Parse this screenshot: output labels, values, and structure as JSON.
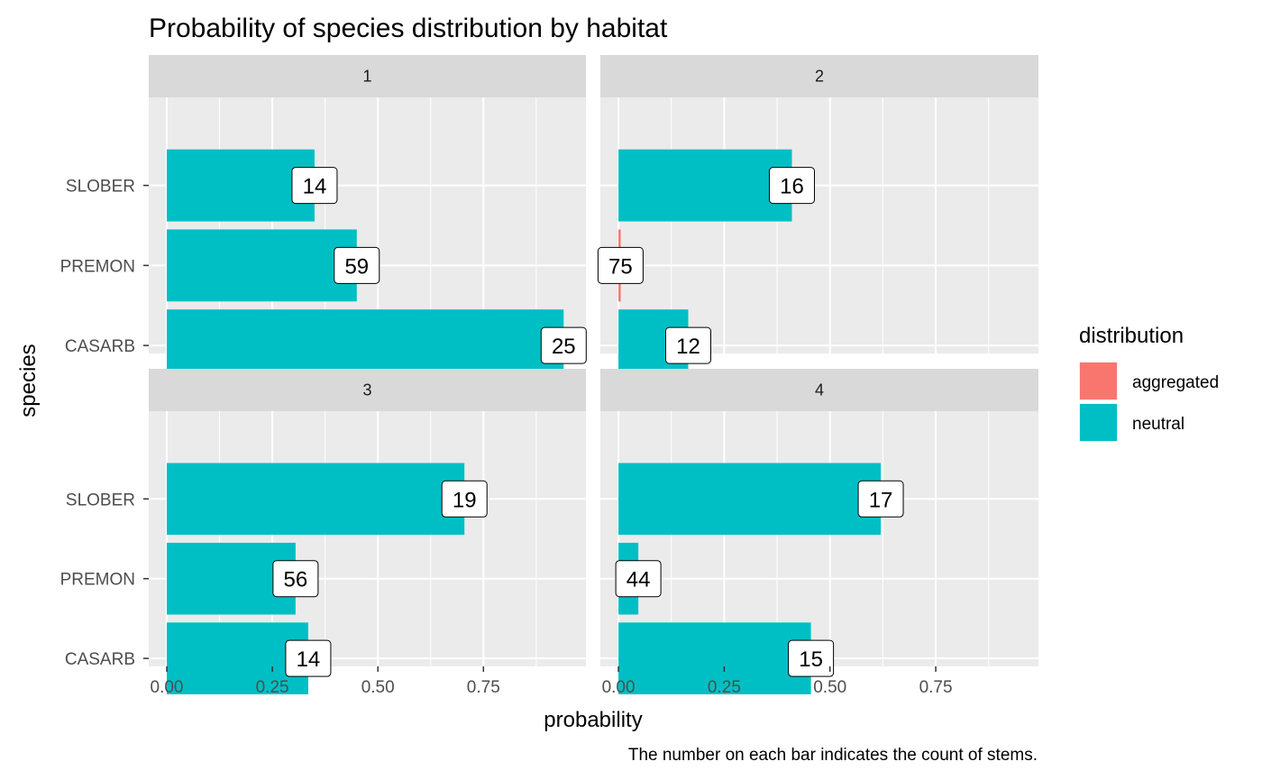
{
  "chart_data": {
    "type": "bar",
    "orientation": "horizontal",
    "facet_type": "wrap",
    "title": "Probability of species distribution by habitat",
    "xlabel": "probability",
    "ylabel": "species",
    "caption": "The number on each bar indicates the count of stems.",
    "xlim": [
      0,
      0.95
    ],
    "x_ticks": [
      {
        "value": 0.0,
        "label": "0.00"
      },
      {
        "value": 0.25,
        "label": "0.25"
      },
      {
        "value": 0.5,
        "label": "0.50"
      },
      {
        "value": 0.75,
        "label": "0.75"
      }
    ],
    "categories": [
      "SLOBER",
      "PREMON",
      "CASARB"
    ],
    "legend": {
      "title": "distribution",
      "position": "right",
      "items": [
        {
          "label": "aggregated",
          "color": "#F8766D"
        },
        {
          "label": "neutral",
          "color": "#00BFC4"
        }
      ]
    },
    "grid": true,
    "panel_background": "#EBEBEB",
    "strip_background": "#D9D9D9",
    "panels": [
      {
        "label": "1",
        "bars": [
          {
            "species": "SLOBER",
            "probability": 0.35,
            "count": "14",
            "distribution": "neutral"
          },
          {
            "species": "PREMON",
            "probability": 0.45,
            "count": "59",
            "distribution": "neutral"
          },
          {
            "species": "CASARB",
            "probability": 0.94,
            "count": "25",
            "distribution": "neutral"
          }
        ]
      },
      {
        "label": "2",
        "bars": [
          {
            "species": "SLOBER",
            "probability": 0.41,
            "count": "16",
            "distribution": "neutral"
          },
          {
            "species": "PREMON",
            "probability": 0.005,
            "count": "75",
            "distribution": "aggregated"
          },
          {
            "species": "CASARB",
            "probability": 0.165,
            "count": "12",
            "distribution": "neutral"
          }
        ]
      },
      {
        "label": "3",
        "bars": [
          {
            "species": "SLOBER",
            "probability": 0.705,
            "count": "19",
            "distribution": "neutral"
          },
          {
            "species": "PREMON",
            "probability": 0.305,
            "count": "56",
            "distribution": "neutral"
          },
          {
            "species": "CASARB",
            "probability": 0.335,
            "count": "14",
            "distribution": "neutral"
          }
        ]
      },
      {
        "label": "4",
        "bars": [
          {
            "species": "SLOBER",
            "probability": 0.62,
            "count": "17",
            "distribution": "neutral"
          },
          {
            "species": "PREMON",
            "probability": 0.047,
            "count": "44",
            "distribution": "neutral"
          },
          {
            "species": "CASARB",
            "probability": 0.455,
            "count": "15",
            "distribution": "neutral"
          }
        ]
      }
    ]
  }
}
